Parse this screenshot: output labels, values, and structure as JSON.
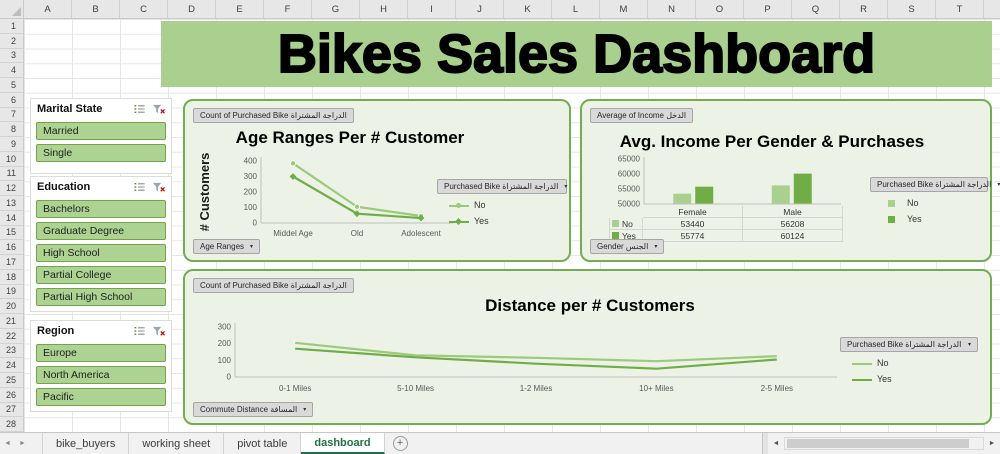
{
  "banner": {
    "title": "Bikes Sales Dashboard"
  },
  "spreadsheet": {
    "columns": [
      "A",
      "B",
      "C",
      "D",
      "E",
      "F",
      "G",
      "H",
      "I",
      "J",
      "K",
      "L",
      "M",
      "N",
      "O",
      "P",
      "Q",
      "R",
      "S",
      "T"
    ],
    "rows": [
      "1",
      "2",
      "3",
      "4",
      "5",
      "6",
      "7",
      "8",
      "9",
      "10",
      "11",
      "12",
      "13",
      "14",
      "15",
      "16",
      "17",
      "18",
      "19",
      "20",
      "21",
      "22",
      "23",
      "24",
      "25",
      "26",
      "27",
      "28"
    ]
  },
  "slicers": [
    {
      "title": "Marital State",
      "items": [
        "Married",
        "Single"
      ]
    },
    {
      "title": "Education",
      "items": [
        "Bachelors",
        "Graduate Degree",
        "High School",
        "Partial College",
        "Partial High School"
      ]
    },
    {
      "title": "Region",
      "items": [
        "Europe",
        "North America",
        "Pacific"
      ]
    }
  ],
  "chart_data": [
    {
      "type": "line",
      "title": "Age Ranges Per # Customer",
      "ylabel": "# Customers",
      "categories": [
        "Middel Age",
        "Old",
        "Adolescent"
      ],
      "series": [
        {
          "name": "No",
          "values": [
            385,
            105,
            45
          ],
          "color": "#9CC97B",
          "marker": "circle"
        },
        {
          "name": "Yes",
          "values": [
            300,
            60,
            32
          ],
          "color": "#70AD47",
          "marker": "diamond"
        }
      ],
      "yticks": [
        400,
        300,
        200,
        100,
        0
      ],
      "ylim": [
        0,
        400
      ],
      "field_button": "Count of Purchased Bike الدراجة المشتراة",
      "axis_button": "Age Ranges",
      "legend_button": "Purchased Bike الدراجة المشتراة"
    },
    {
      "type": "bar",
      "title": "Avg. Income Per Gender & Purchases",
      "categories": [
        "Female",
        "Male"
      ],
      "series": [
        {
          "name": "No",
          "values": [
            53440,
            56208
          ],
          "color": "#A9D08E"
        },
        {
          "name": "Yes",
          "values": [
            55774,
            60124
          ],
          "color": "#70AD47"
        }
      ],
      "yticks": [
        65000,
        60000,
        55000,
        50000
      ],
      "ylim": [
        50000,
        65000
      ],
      "field_button": "Average of Income الدخل",
      "axis_button": "Gender الجنس",
      "legend_button": "Purchased Bike الدراجة المشتراة"
    },
    {
      "type": "line",
      "title": "Distance per # Customers",
      "categories": [
        "0-1 Miles",
        "5-10 Miles",
        "1-2 Miles",
        "10+ Miles",
        "2-5 Miles"
      ],
      "series": [
        {
          "name": "No",
          "values": [
            205,
            130,
            115,
            95,
            125
          ],
          "color": "#9CC97B",
          "marker": "none"
        },
        {
          "name": "Yes",
          "values": [
            170,
            118,
            80,
            50,
            105
          ],
          "color": "#70AD47",
          "marker": "none"
        }
      ],
      "yticks": [
        300,
        200,
        100,
        0
      ],
      "ylim": [
        0,
        300
      ],
      "field_button": "Count of Purchased Bike الدراجة المشتراة",
      "axis_button": "Commute Distance المسافة",
      "legend_button": "Purchased Bike الدراجة المشتراة"
    }
  ],
  "tab_bar": {
    "tabs": [
      {
        "label": "bike_buyers",
        "active": false
      },
      {
        "label": "working sheet",
        "active": false
      },
      {
        "label": "pivot table",
        "active": false
      },
      {
        "label": "dashboard",
        "active": true
      }
    ],
    "add_label": "+"
  }
}
